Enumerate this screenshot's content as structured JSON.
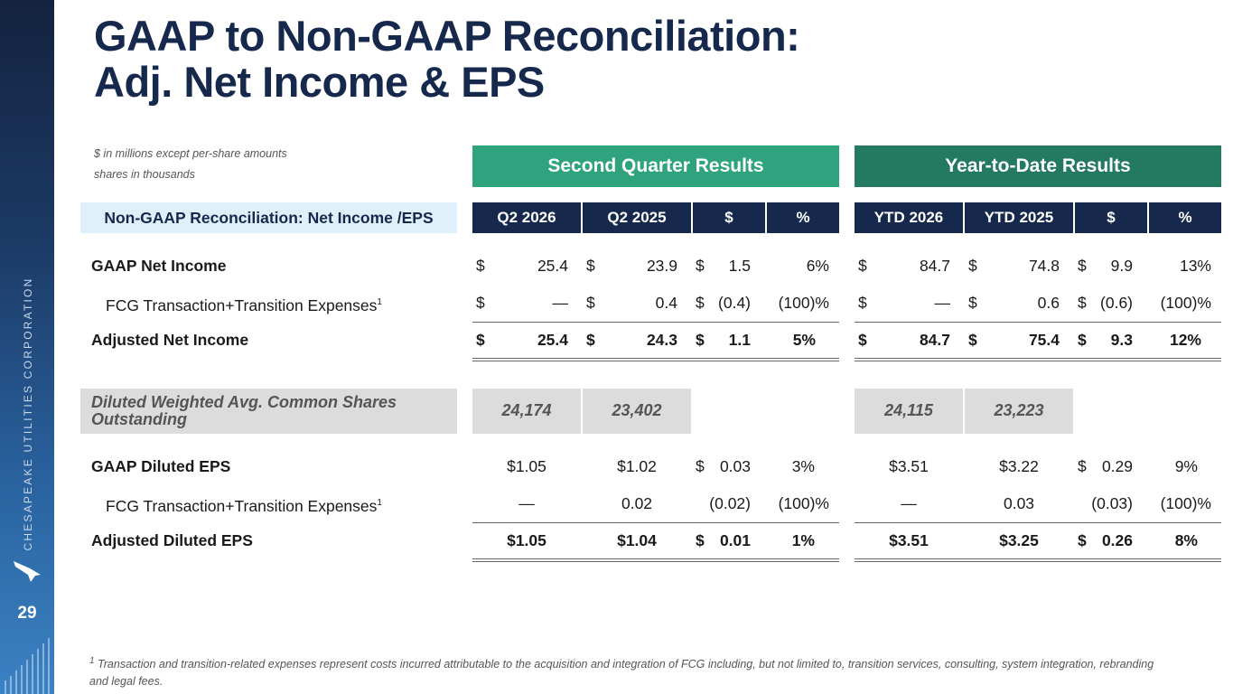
{
  "slide": {
    "title_line1": "GAAP to Non-GAAP Reconciliation:",
    "title_line2": "Adj. Net Income & EPS",
    "units_note1": "$ in millions except per-share amounts",
    "units_note2": "shares in thousands",
    "company": "CHESAPEAKE UTILITIES CORPORATION",
    "page_number": "29",
    "footnote_mark": "1",
    "footnote": "Transaction and transition-related expenses represent costs incurred attributable to the acquisition and integration of FCG including, but not limited to, transition services, consulting, system integration, rebranding and legal fees."
  },
  "colors": {
    "navy": "#16294d",
    "green_light": "#2fa37e",
    "green_dark": "#237a61",
    "row_header_bg": "#dff0fb",
    "grey": "#dcdcdc"
  },
  "table": {
    "row_header": "Non-GAAP Reconciliation: Net Income /EPS",
    "groups": [
      "Second Quarter Results",
      "Year-to-Date Results"
    ],
    "columns": [
      "Q2 2026",
      "Q2 2025",
      "$",
      "%",
      "YTD 2026",
      "YTD 2025",
      "$",
      "%"
    ],
    "net_income_rows": [
      {
        "label": "GAAP Net Income",
        "sup": "",
        "cells": [
          "25.4",
          "23.9",
          "1.5",
          "6%",
          "84.7",
          "74.8",
          "9.9",
          "13%"
        ]
      },
      {
        "label": "FCG Transaction+Transition Expenses",
        "sup": "1",
        "cells": [
          "—",
          "0.4",
          "(0.4)",
          "(100)%",
          "—",
          "0.6",
          "(0.6)",
          "(100)%"
        ]
      },
      {
        "label": "Adjusted Net Income",
        "sup": "",
        "cells": [
          "25.4",
          "24.3",
          "1.1",
          "5%",
          "84.7",
          "75.4",
          "9.3",
          "12%"
        ]
      }
    ],
    "currency_symbol": "$",
    "shares_row": {
      "label": "Diluted Weighted Avg. Common Shares Outstanding",
      "cells": [
        "24,174",
        "23,402",
        "24,115",
        "23,223"
      ]
    },
    "eps_rows": [
      {
        "label": "GAAP Diluted EPS",
        "sup": "",
        "cells": [
          "$1.05",
          "$1.02",
          "0.03",
          "3%",
          "$3.51",
          "$3.22",
          "0.29",
          "9%"
        ]
      },
      {
        "label": "FCG Transaction+Transition Expenses",
        "sup": "1",
        "cells": [
          "—",
          "0.02",
          "(0.02)",
          "(100)%",
          "—",
          "0.03",
          "(0.03)",
          "(100)%"
        ]
      },
      {
        "label": "Adjusted Diluted EPS",
        "sup": "",
        "cells": [
          "$1.05",
          "$1.04",
          "0.01",
          "1%",
          "$3.51",
          "$3.25",
          "0.26",
          "8%"
        ]
      }
    ]
  }
}
